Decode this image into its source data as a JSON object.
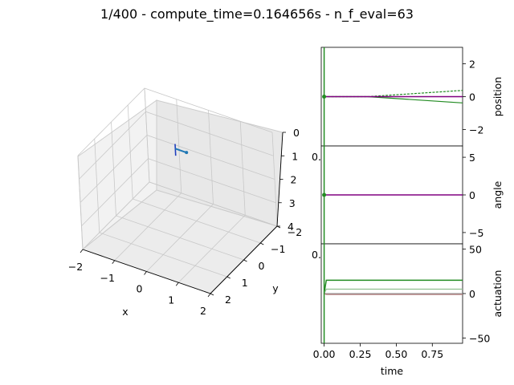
{
  "figure": {
    "title": "1/400 - compute_time=0.164656s - n_f_eval=63"
  },
  "chart_data": [
    {
      "type": "scatter3d",
      "xlabel": "x",
      "ylabel": "y",
      "zlabel": "",
      "xlim": [
        -2,
        2
      ],
      "ylim": [
        -2,
        2
      ],
      "zlim": [
        0,
        4
      ],
      "xticks": [
        "−2",
        "−1",
        "0",
        "1",
        "2"
      ],
      "yticks": [
        "−2",
        "−1",
        "0",
        "1",
        "2"
      ],
      "zticks": [
        "0",
        "1",
        "2",
        "3",
        "4"
      ],
      "z_inverted": true,
      "grid": true,
      "colors": {
        "pole": "#1f3fbf",
        "cart": "#1f77b4"
      },
      "pole": [
        [
          0,
          0,
          0
        ],
        [
          0,
          0,
          0.5
        ]
      ],
      "cart": [
        [
          0,
          0,
          0.2
        ],
        [
          0.35,
          0,
          0.2
        ]
      ]
    },
    {
      "type": "line",
      "panel": "position",
      "ylabel": "position",
      "ylim": [
        -3,
        3
      ],
      "yticks": [
        "−2",
        "0",
        "2"
      ],
      "xlim": [
        -0.02,
        0.96
      ],
      "left_tick_label": "0.",
      "colors": {
        "main": "#800080",
        "band": "#228b22"
      },
      "x": [
        0,
        0.3,
        0.96
      ],
      "series": [
        {
          "values": [
            0,
            0,
            0
          ]
        },
        {
          "values": [
            0,
            0,
            0.38
          ]
        },
        {
          "values": [
            0,
            0,
            -0.38
          ]
        }
      ]
    },
    {
      "type": "line",
      "panel": "angle",
      "ylabel": "angle",
      "ylim": [
        -6.5,
        6.5
      ],
      "yticks": [
        "5",
        "0",
        "−5"
      ],
      "xlim": [
        -0.02,
        0.96
      ],
      "left_tick_label": "0.",
      "colors": {
        "main": "#800080",
        "band": "#228b22"
      },
      "x": [
        0,
        0.96
      ],
      "series": [
        {
          "values": [
            0,
            0
          ]
        }
      ]
    },
    {
      "type": "line",
      "panel": "actuation",
      "ylabel": "actuation",
      "ylim": [
        -56,
        56
      ],
      "yticks": [
        "50",
        "0",
        "−50"
      ],
      "xticks": [
        "0.00",
        "0.25",
        "0.50",
        "0.75"
      ],
      "xlabel": "time",
      "xlim": [
        -0.02,
        0.96
      ],
      "colors": {
        "main": "#228b22",
        "light": "#90c090",
        "grey": "#a0a0a0"
      },
      "x": [
        0,
        0.015,
        0.96
      ],
      "series": [
        {
          "values": [
            0,
            15,
            15
          ]
        },
        {
          "values": [
            0,
            5,
            5
          ]
        },
        {
          "values": [
            0,
            0,
            0
          ]
        },
        {
          "values": [
            0,
            -1,
            -1
          ]
        }
      ]
    }
  ]
}
